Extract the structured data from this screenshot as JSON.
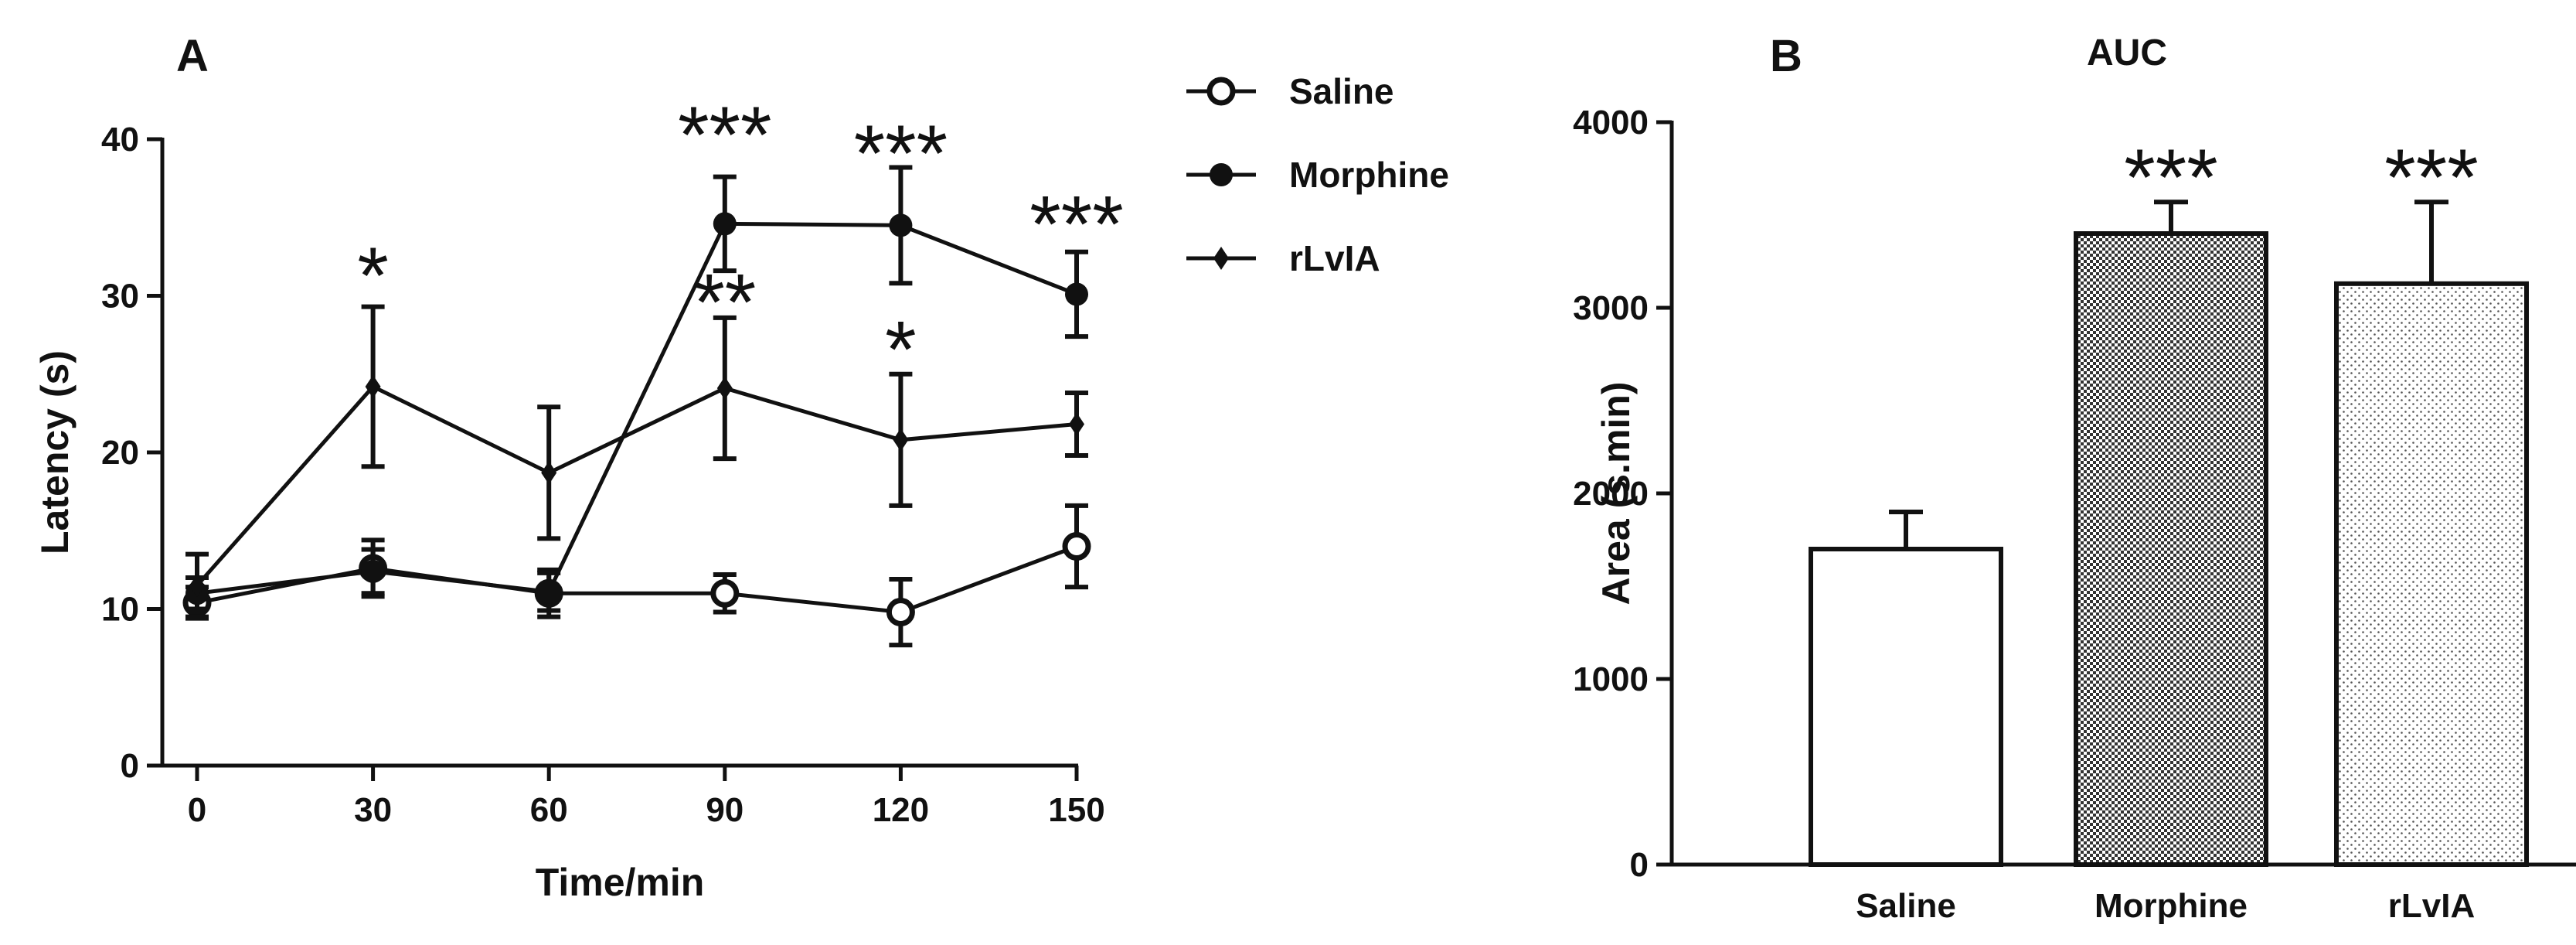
{
  "chart_data": [
    {
      "panel": "A",
      "type": "line",
      "xlabel": "Time/min",
      "ylabel": "Latency (s)",
      "x": [
        0,
        30,
        60,
        90,
        120,
        150
      ],
      "xticks": [
        "0",
        "30",
        "60",
        "90",
        "120",
        "150"
      ],
      "ylim": [
        0,
        40
      ],
      "yticks": [
        "0",
        "10",
        "20",
        "30",
        "40"
      ],
      "legend_position": "top-right",
      "series": [
        {
          "name": "Saline",
          "marker": "open-circle",
          "values": [
            10.4,
            12.6,
            11.0,
            11.0,
            9.8,
            14.0
          ],
          "errors": [
            1.0,
            1.8,
            1.5,
            1.2,
            2.1,
            2.6
          ]
        },
        {
          "name": "Morphine",
          "marker": "filled-circle",
          "values": [
            11.0,
            12.4,
            11.1,
            34.6,
            34.5,
            30.1
          ],
          "errors": [
            1.0,
            1.4,
            1.2,
            3.0,
            3.7,
            2.7
          ]
        },
        {
          "name": "rLvIA",
          "marker": "filled-diamond",
          "values": [
            11.5,
            24.2,
            18.7,
            24.1,
            20.8,
            21.8
          ],
          "errors": [
            2.0,
            5.1,
            4.2,
            4.5,
            4.2,
            2.0
          ]
        }
      ],
      "annotations": [
        {
          "text": "*",
          "x": 30,
          "y": 31.5
        },
        {
          "text": "***",
          "x": 90,
          "y": 40.5
        },
        {
          "text": "**",
          "x": 90,
          "y": 29.8
        },
        {
          "text": "***",
          "x": 120,
          "y": 39.3
        },
        {
          "text": "*",
          "x": 120,
          "y": 26.8
        },
        {
          "text": "***",
          "x": 150,
          "y": 34.8
        }
      ]
    },
    {
      "panel": "B",
      "type": "bar",
      "title": "AUC",
      "xlabel": "",
      "ylabel": "Area (s.min)",
      "categories": [
        "Saline",
        "Morphine",
        "rLvIA"
      ],
      "values": [
        1700,
        3400,
        3130
      ],
      "errors": [
        200,
        170,
        440
      ],
      "fills": [
        "white",
        "crosshatch",
        "dots"
      ],
      "ylim": [
        0,
        4000
      ],
      "yticks": [
        "0",
        "1000",
        "2000",
        "3000",
        "4000"
      ],
      "annotations": [
        {
          "text": "***",
          "category": "Morphine",
          "y": 3720
        },
        {
          "text": "***",
          "category": "rLvIA",
          "y": 3720
        }
      ]
    }
  ]
}
